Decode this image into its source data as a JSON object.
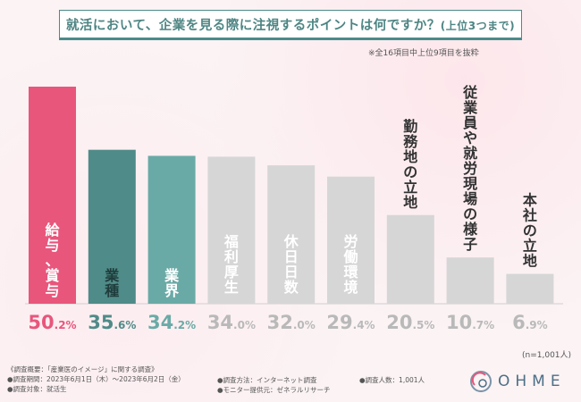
{
  "title_main": "就活において、企業を見る際に注視するポイントは何ですか？",
  "title_sub": "(上位3つまで)",
  "note": "※全16項目中上位9項目を抜粋",
  "n_label": "(n=1,001人)",
  "footer": {
    "line1": "《調査概要：「産業医のイメージ」に関する調査》",
    "line2": "●調査期間：2023年6月1日（木）～2023年6月2日（金）",
    "line3": "●調査対象：就活生",
    "method": "●調査方法：インターネット調査",
    "provider": "●モニター提供元：ゼネラルリサーチ",
    "count": "●調査人数：1,001人"
  },
  "logo": {
    "text": "OHME"
  },
  "colors": {
    "accent": "#e8567c",
    "teal_dark": "#4f8b88",
    "teal_light": "#6aaaa6",
    "gray": "#d6d6d6",
    "gray_text": "#b9b9b9"
  },
  "chart_data": {
    "type": "bar",
    "title": "就活において、企業を見る際に注視するポイントは何ですか？(上位3つまで)",
    "unit": "%",
    "ylim": [
      0,
      55
    ],
    "categories": [
      "給与、賞与",
      "業種",
      "業界",
      "福利厚生",
      "休日日数",
      "労働環境",
      "勤務地の立地",
      "従業員や就労現場の様子",
      "本社の立地"
    ],
    "values": [
      50.2,
      35.6,
      34.2,
      34.0,
      32.0,
      29.4,
      20.5,
      10.7,
      6.9
    ],
    "value_int": [
      "50",
      "35",
      "34",
      "34",
      "32",
      "29",
      "20",
      "10",
      "6"
    ],
    "value_dec": [
      ".2%",
      ".6%",
      ".2%",
      ".0%",
      ".0%",
      ".4%",
      ".5%",
      ".7%",
      ".9%"
    ]
  }
}
